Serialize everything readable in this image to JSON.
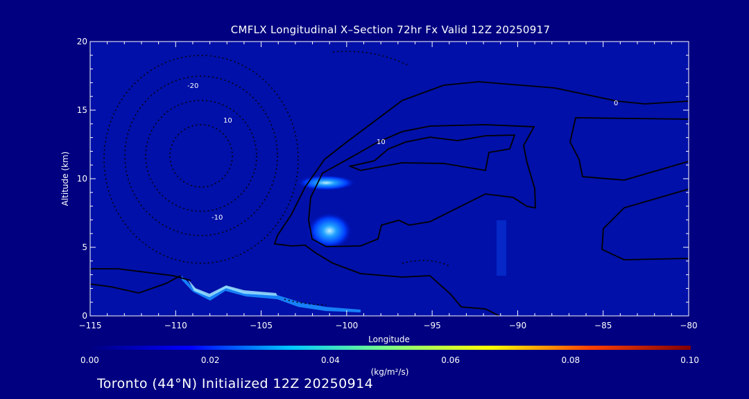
{
  "chart_data": {
    "type": "heatmap",
    "title": "CMFLX Longitudinal X–Section 72hr  Fx Valid 12Z 20250917",
    "xlabel": "Longitude",
    "ylabel": "Altitude (km)",
    "xlim": [
      -115,
      -80
    ],
    "ylim": [
      0,
      20
    ],
    "x_ticks": [
      -115,
      -110,
      -105,
      -100,
      -95,
      -90,
      -85,
      -80
    ],
    "x_tick_labels": [
      "−115",
      "−110",
      "−105",
      "−100",
      "−95",
      "−90",
      "−85",
      "−80"
    ],
    "y_ticks": [
      0,
      5,
      10,
      15,
      20
    ],
    "y_tick_labels": [
      "0",
      "5",
      "10",
      "15",
      "20"
    ],
    "colorbar": {
      "label": "(kg/m²/s)",
      "range": [
        0,
        0.1
      ],
      "ticks": [
        0,
        0.02,
        0.04,
        0.06,
        0.08,
        0.1
      ],
      "tick_labels": [
        "0.00",
        "0.02",
        "0.04",
        "0.06",
        "0.08",
        "0.10"
      ],
      "colors": [
        "#000080",
        "#0000ff",
        "#00c8ff",
        "#80ff80",
        "#ffff00",
        "#ff4000",
        "#800000"
      ]
    },
    "flux_maxima": [
      {
        "lon": -101.2,
        "alt": 9.7,
        "value": 0.03
      },
      {
        "lon": -101.0,
        "alt": 6.2,
        "value": 0.035
      },
      {
        "lon": -109.0,
        "alt": 2.4,
        "value": 0.03
      },
      {
        "lon": -106.5,
        "alt": 1.7,
        "value": 0.03
      },
      {
        "lon": -103.5,
        "alt": 1.3,
        "value": 0.02
      }
    ],
    "contour_labels": [
      "0",
      "10",
      "-10",
      "-20",
      "10"
    ],
    "grid": false,
    "legend": "colorbar-bottom"
  },
  "footer": "Toronto (44°N) Initialized 12Z 20250914"
}
